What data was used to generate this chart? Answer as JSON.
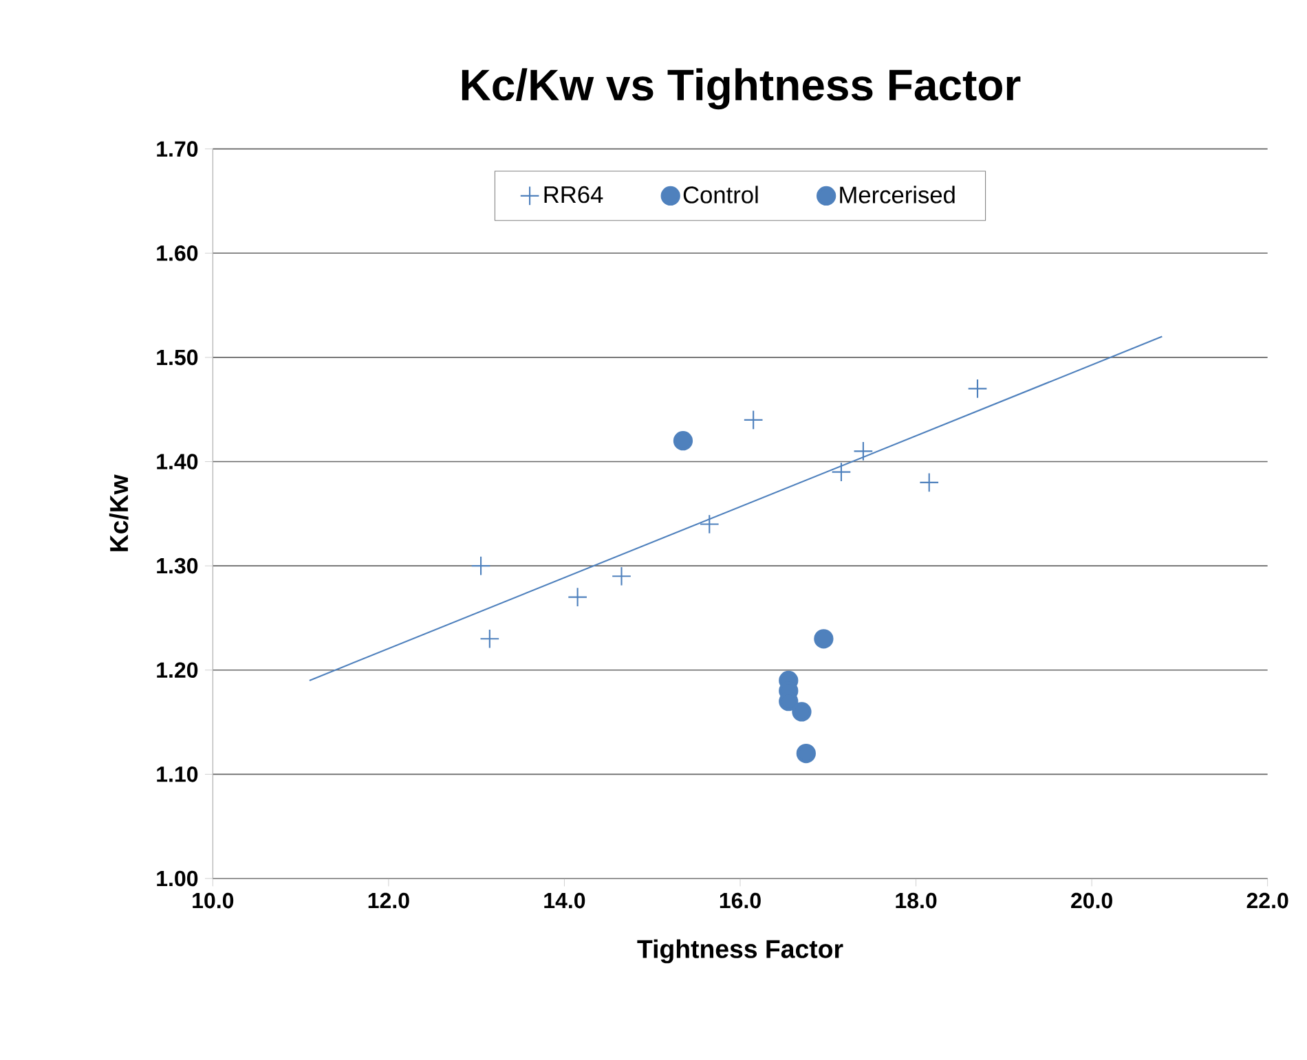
{
  "chart_data": {
    "type": "scatter",
    "title": "Kc/Kw vs Tightness Factor",
    "xlabel": "Tightness Factor",
    "ylabel": "Kc/Kw",
    "xlim": [
      10,
      22
    ],
    "xticks": [
      {
        "value": 10,
        "label": "10.0"
      },
      {
        "value": 12,
        "label": "12.0"
      },
      {
        "value": 14,
        "label": "14.0"
      },
      {
        "value": 16,
        "label": "16.0"
      },
      {
        "value": 18,
        "label": "18.0"
      },
      {
        "value": 20,
        "label": "20.0"
      },
      {
        "value": 22,
        "label": "22.0"
      }
    ],
    "ylim": [
      1.0,
      1.7
    ],
    "yticks": [
      {
        "value": 1.0,
        "label": "1.00"
      },
      {
        "value": 1.1,
        "label": "1.10"
      },
      {
        "value": 1.2,
        "label": "1.20"
      },
      {
        "value": 1.3,
        "label": "1.30"
      },
      {
        "value": 1.4,
        "label": "1.40"
      },
      {
        "value": 1.5,
        "label": "1.50"
      },
      {
        "value": 1.6,
        "label": "1.60"
      },
      {
        "value": 1.7,
        "label": "1.70"
      }
    ],
    "grid": "y",
    "legend": "top",
    "series": [
      {
        "name": "RR64",
        "color": "#4f81bd",
        "marker": "cross",
        "x": [
          13.05,
          13.15,
          14.15,
          14.65,
          15.65,
          16.15,
          17.15,
          17.4,
          18.15,
          18.7
        ],
        "values": [
          1.3,
          1.23,
          1.27,
          1.29,
          1.34,
          1.44,
          1.39,
          1.41,
          1.38,
          1.47
        ]
      },
      {
        "name": "Control",
        "color": "#4f81bd",
        "marker": "circle",
        "x": [
          15.35
        ],
        "values": [
          1.42
        ]
      },
      {
        "name": "Mercerised",
        "color": "#4f81bd",
        "marker": "circle",
        "x": [
          16.95,
          16.55,
          16.55,
          16.55,
          16.65,
          16.7,
          16.75
        ],
        "values": [
          1.23,
          1.19,
          1.18,
          1.17,
          null,
          1.16,
          1.12
        ]
      },
      {
        "type": "line",
        "color": "#4f81bd",
        "marker": "none",
        "x": [
          11.1,
          20.8
        ],
        "values": [
          1.19,
          1.52
        ]
      }
    ]
  }
}
